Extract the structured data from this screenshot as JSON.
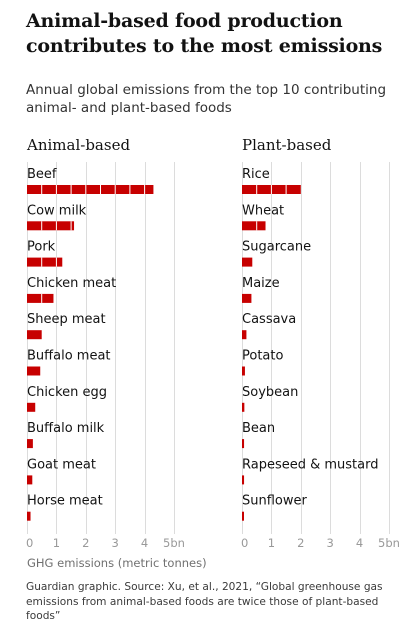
{
  "title": "Animal-based food production contributes to the most emissions",
  "subtitle": "Annual global emissions from the top 10 contributing animal- and plant-based foods",
  "source": "Guardian graphic. Source: Xu, et al., 2021, “Global greenhouse gas emissions from animal-based foods are twice those of plant-based foods”",
  "colors": {
    "bar": "#c70000",
    "grid": "#dcdcdc",
    "tick": "#999999",
    "text": "#121212",
    "muted": "#707070"
  },
  "chart_data": [
    {
      "type": "bar",
      "orientation": "horizontal",
      "panel_title": "Animal-based",
      "categories": [
        "Beef",
        "Cow milk",
        "Pork",
        "Chicken meat",
        "Sheep meat",
        "Buffalo meat",
        "Chicken egg",
        "Buffalo milk",
        "Goat meat",
        "Horse meat"
      ],
      "values": [
        4.3,
        1.6,
        1.2,
        0.9,
        0.5,
        0.45,
        0.28,
        0.2,
        0.18,
        0.12
      ],
      "xlabel": "GHG emissions (metric tonnes)",
      "xlim": [
        0,
        5
      ],
      "xticks": [
        "0",
        "1",
        "2",
        "3",
        "4",
        "5bn"
      ],
      "grid": true
    },
    {
      "type": "bar",
      "orientation": "horizontal",
      "panel_title": "Plant-based",
      "categories": [
        "Rice",
        "Wheat",
        "Sugarcane",
        "Maize",
        "Cassava",
        "Potato",
        "Soybean",
        "Bean",
        "Rapeseed & mustard",
        "Sunflower"
      ],
      "values": [
        2.0,
        0.8,
        0.35,
        0.32,
        0.15,
        0.1,
        0.08,
        0.07,
        0.07,
        0.05
      ],
      "xlabel": "",
      "xlim": [
        0,
        5
      ],
      "xticks": [
        "0",
        "1",
        "2",
        "3",
        "4",
        "5bn"
      ],
      "grid": true
    }
  ]
}
